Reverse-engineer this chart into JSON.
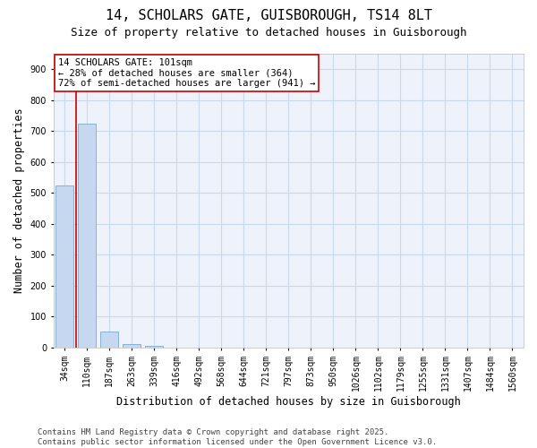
{
  "title_line1": "14, SCHOLARS GATE, GUISBOROUGH, TS14 8LT",
  "title_line2": "Size of property relative to detached houses in Guisborough",
  "xlabel": "Distribution of detached houses by size in Guisborough",
  "ylabel": "Number of detached properties",
  "categories": [
    "34sqm",
    "110sqm",
    "187sqm",
    "263sqm",
    "339sqm",
    "416sqm",
    "492sqm",
    "568sqm",
    "644sqm",
    "721sqm",
    "797sqm",
    "873sqm",
    "950sqm",
    "1026sqm",
    "1102sqm",
    "1179sqm",
    "1255sqm",
    "1331sqm",
    "1407sqm",
    "1484sqm",
    "1560sqm"
  ],
  "values": [
    524,
    724,
    50,
    10,
    5,
    0,
    0,
    0,
    0,
    0,
    0,
    0,
    0,
    0,
    0,
    0,
    0,
    0,
    0,
    0,
    0
  ],
  "bar_color": "#c5d8f0",
  "bar_edge_color": "#7aaad0",
  "grid_color": "#c8d8ee",
  "background_color": "#eef2fb",
  "annotation_line1": "14 SCHOLARS GATE: 101sqm",
  "annotation_line2": "← 28% of detached houses are smaller (364)",
  "annotation_line3": "72% of semi-detached houses are larger (941) →",
  "annotation_box_color": "#ffffff",
  "annotation_box_edge_color": "#cc0000",
  "redline_x": 0.5,
  "ylim": [
    0,
    950
  ],
  "yticks": [
    0,
    100,
    200,
    300,
    400,
    500,
    600,
    700,
    800,
    900
  ],
  "footnote_line1": "Contains HM Land Registry data © Crown copyright and database right 2025.",
  "footnote_line2": "Contains public sector information licensed under the Open Government Licence v3.0.",
  "title_fontsize": 11,
  "subtitle_fontsize": 9,
  "axis_label_fontsize": 8.5,
  "tick_fontsize": 7,
  "annotation_fontsize": 7.5,
  "footnote_fontsize": 6.5
}
